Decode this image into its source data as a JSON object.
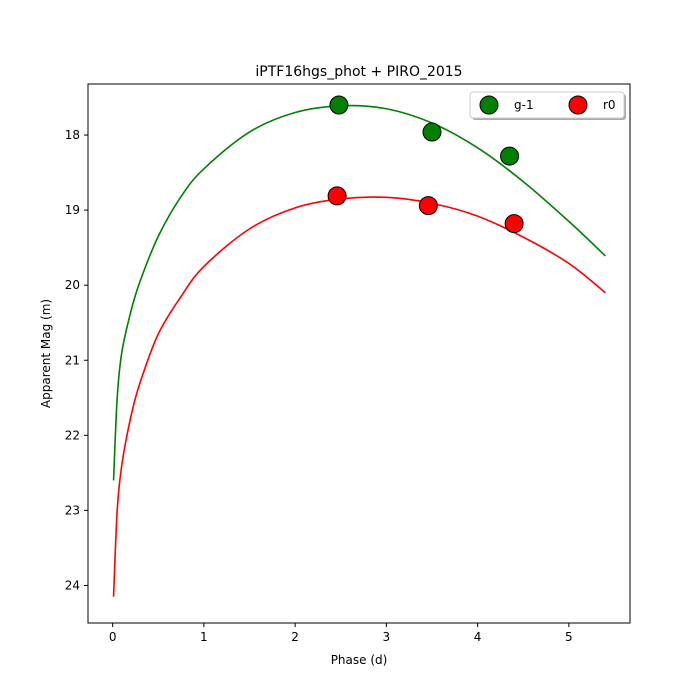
{
  "chart_data": {
    "type": "scatter",
    "title": "iPTF16hgs_phot + PIRO_2015",
    "xlabel": "Phase (d)",
    "ylabel": "Apparent Mag (m)",
    "xlim": [
      -0.27,
      5.67
    ],
    "ylim": [
      24.5,
      17.32
    ],
    "y_inverted": true,
    "xticks": [
      0,
      1,
      2,
      3,
      4,
      5
    ],
    "yticks": [
      18,
      19,
      20,
      21,
      22,
      23,
      24
    ],
    "legend_position": "upper-right",
    "series": [
      {
        "name": "g-1",
        "color": "#008000",
        "points": [
          {
            "x": 2.48,
            "y": 17.6
          },
          {
            "x": 3.5,
            "y": 17.96
          },
          {
            "x": 4.35,
            "y": 18.28
          }
        ],
        "model_curve": {
          "x": [
            0.01,
            0.05,
            0.1,
            0.2,
            0.3,
            0.5,
            0.75,
            1.0,
            1.5,
            2.0,
            2.5,
            3.0,
            3.5,
            4.0,
            4.5,
            5.0,
            5.4
          ],
          "y": [
            22.6,
            21.5,
            20.9,
            20.35,
            19.95,
            19.35,
            18.82,
            18.45,
            17.96,
            17.7,
            17.61,
            17.65,
            17.84,
            18.17,
            18.62,
            19.15,
            19.61
          ]
        }
      },
      {
        "name": "r0",
        "color": "#ff0000",
        "points": [
          {
            "x": 2.46,
            "y": 18.81
          },
          {
            "x": 3.46,
            "y": 18.94
          },
          {
            "x": 4.4,
            "y": 19.18
          }
        ],
        "model_curve": {
          "x": [
            0.01,
            0.05,
            0.1,
            0.2,
            0.3,
            0.5,
            0.75,
            1.0,
            1.5,
            2.0,
            2.5,
            3.0,
            3.5,
            4.0,
            4.5,
            5.0,
            5.4
          ],
          "y": [
            24.15,
            23.0,
            22.4,
            21.75,
            21.3,
            20.65,
            20.15,
            19.75,
            19.25,
            18.97,
            18.85,
            18.83,
            18.91,
            19.08,
            19.36,
            19.71,
            20.1
          ]
        }
      }
    ]
  }
}
